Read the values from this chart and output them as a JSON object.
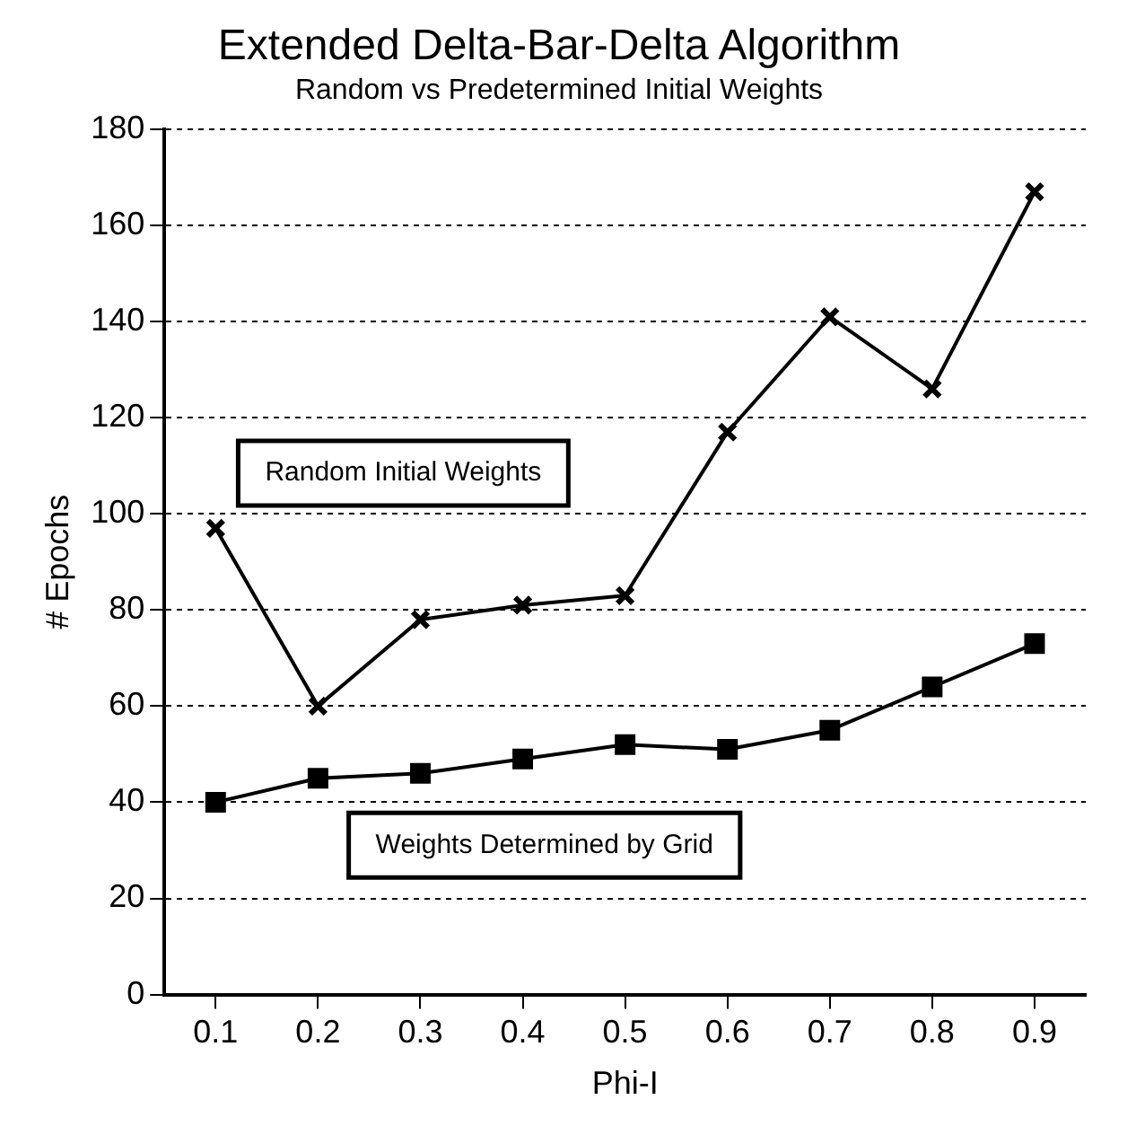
{
  "chart_data": {
    "type": "line",
    "title": "Extended Delta-Bar-Delta Algorithm",
    "subtitle": "Random vs Predetermined Initial Weights",
    "xlabel": "Phi-I",
    "ylabel": "# Epochs",
    "categories": [
      "0.1",
      "0.2",
      "0.3",
      "0.4",
      "0.5",
      "0.6",
      "0.7",
      "0.8",
      "0.9"
    ],
    "series": [
      {
        "name": "Random Initial Weights",
        "color": "#000000",
        "marker": "cross",
        "values": [
          97,
          60,
          78,
          81,
          83,
          117,
          141,
          126,
          167
        ]
      },
      {
        "name": "Weights Determined by Grid",
        "color": "#000000",
        "marker": "square",
        "values": [
          40,
          45,
          46,
          49,
          52,
          51,
          55,
          64,
          73
        ]
      }
    ],
    "ylim": [
      0,
      180
    ],
    "yticks": [
      0,
      20,
      40,
      60,
      80,
      100,
      120,
      140,
      160,
      180
    ],
    "grid": "y",
    "legend": false,
    "line_style": "solid"
  }
}
